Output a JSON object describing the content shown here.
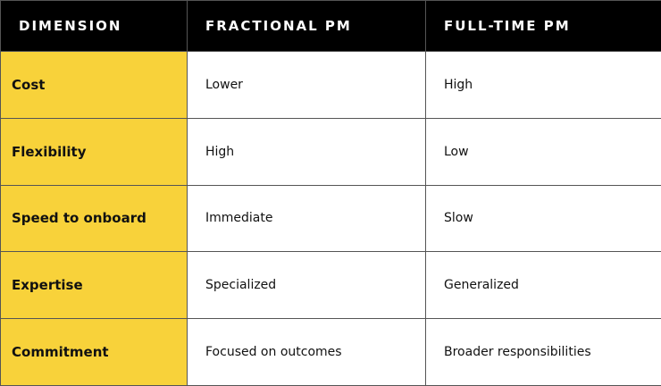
{
  "table": {
    "header": [
      "DIMENSION",
      "FRACTIONAL PM",
      "FULL-TIME PM"
    ],
    "rows": [
      [
        "Cost",
        "Lower",
        "High"
      ],
      [
        "Flexibility",
        "High",
        "Low"
      ],
      [
        "Speed to onboard",
        "Immediate",
        "Slow"
      ],
      [
        "Expertise",
        "Specialized",
        "Generalized"
      ],
      [
        "Commitment",
        "Focused on outcomes",
        "Broader responsibilities"
      ]
    ]
  }
}
